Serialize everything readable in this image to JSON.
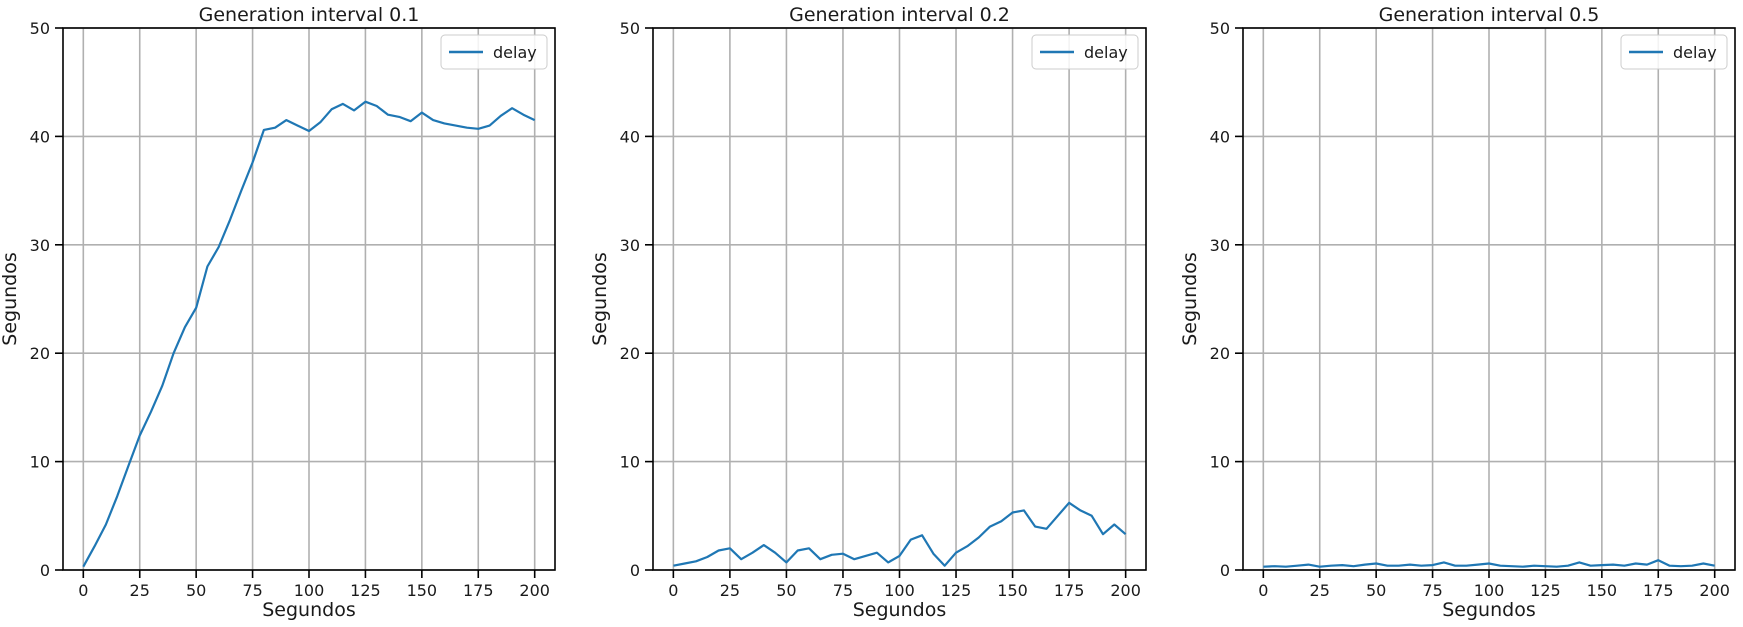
{
  "colors": {
    "series": "#1f77b4",
    "grid": "#b0b0b0",
    "axis": "#000000"
  },
  "chart_data": [
    {
      "type": "line",
      "title": "Generation interval 0.1",
      "xlabel": "Segundos",
      "ylabel": "Segundos",
      "xlim": [
        -9,
        209
      ],
      "ylim": [
        0,
        50
      ],
      "xticks": [
        0,
        25,
        50,
        75,
        100,
        125,
        150,
        175,
        200
      ],
      "yticks": [
        0,
        10,
        20,
        30,
        40,
        50
      ],
      "grid": true,
      "legend": "upper right",
      "series": [
        {
          "name": "delay",
          "x": [
            0,
            5,
            10,
            15,
            20,
            25,
            30,
            35,
            40,
            45,
            50,
            55,
            60,
            65,
            70,
            75,
            80,
            85,
            90,
            95,
            100,
            105,
            110,
            115,
            120,
            125,
            130,
            135,
            140,
            145,
            150,
            155,
            160,
            165,
            170,
            175,
            180,
            185,
            190,
            195,
            200
          ],
          "y": [
            0.3,
            2.2,
            4.2,
            6.8,
            9.6,
            12.4,
            14.6,
            17.0,
            20.0,
            22.4,
            24.2,
            28.0,
            29.8,
            32.3,
            35.0,
            37.6,
            40.6,
            40.8,
            41.5,
            41.0,
            40.5,
            41.3,
            42.5,
            43.0,
            42.4,
            43.2,
            42.8,
            42.0,
            41.8,
            41.4,
            42.2,
            41.5,
            41.2,
            41.0,
            40.8,
            40.7,
            41.0,
            41.9,
            42.6,
            42.0,
            41.5
          ]
        }
      ]
    },
    {
      "type": "line",
      "title": "Generation interval 0.2",
      "xlabel": "Segundos",
      "ylabel": "Segundos",
      "xlim": [
        -9,
        209
      ],
      "ylim": [
        0,
        50
      ],
      "xticks": [
        0,
        25,
        50,
        75,
        100,
        125,
        150,
        175,
        200
      ],
      "yticks": [
        0,
        10,
        20,
        30,
        40,
        50
      ],
      "grid": true,
      "legend": "upper right",
      "series": [
        {
          "name": "delay",
          "x": [
            0,
            5,
            10,
            15,
            20,
            25,
            30,
            35,
            40,
            45,
            50,
            55,
            60,
            65,
            70,
            75,
            80,
            85,
            90,
            95,
            100,
            105,
            110,
            115,
            120,
            125,
            130,
            135,
            140,
            145,
            150,
            155,
            160,
            165,
            170,
            175,
            180,
            185,
            190,
            195,
            200
          ],
          "y": [
            0.4,
            0.6,
            0.8,
            1.2,
            1.8,
            2.0,
            1.0,
            1.6,
            2.3,
            1.6,
            0.7,
            1.8,
            2.0,
            1.0,
            1.4,
            1.5,
            1.0,
            1.3,
            1.6,
            0.7,
            1.3,
            2.8,
            3.2,
            1.5,
            0.4,
            1.6,
            2.2,
            3.0,
            4.0,
            4.5,
            5.3,
            5.5,
            4.0,
            3.8,
            5.0,
            6.2,
            5.5,
            5.0,
            3.3,
            4.2,
            3.3
          ]
        }
      ]
    },
    {
      "type": "line",
      "title": "Generation interval 0.5",
      "xlabel": "Segundos",
      "ylabel": "Segundos",
      "xlim": [
        -9,
        209
      ],
      "ylim": [
        0,
        50
      ],
      "xticks": [
        0,
        25,
        50,
        75,
        100,
        125,
        150,
        175,
        200
      ],
      "yticks": [
        0,
        10,
        20,
        30,
        40,
        50
      ],
      "grid": true,
      "legend": "upper right",
      "series": [
        {
          "name": "delay",
          "x": [
            0,
            5,
            10,
            15,
            20,
            25,
            30,
            35,
            40,
            45,
            50,
            55,
            60,
            65,
            70,
            75,
            80,
            85,
            90,
            95,
            100,
            105,
            110,
            115,
            120,
            125,
            130,
            135,
            140,
            145,
            150,
            155,
            160,
            165,
            170,
            175,
            180,
            185,
            190,
            195,
            200
          ],
          "y": [
            0.3,
            0.35,
            0.3,
            0.4,
            0.5,
            0.3,
            0.4,
            0.45,
            0.35,
            0.5,
            0.6,
            0.4,
            0.4,
            0.5,
            0.4,
            0.45,
            0.7,
            0.4,
            0.4,
            0.5,
            0.6,
            0.4,
            0.35,
            0.3,
            0.4,
            0.35,
            0.3,
            0.4,
            0.7,
            0.4,
            0.45,
            0.5,
            0.4,
            0.6,
            0.5,
            0.9,
            0.4,
            0.35,
            0.4,
            0.6,
            0.4
          ]
        }
      ]
    }
  ]
}
